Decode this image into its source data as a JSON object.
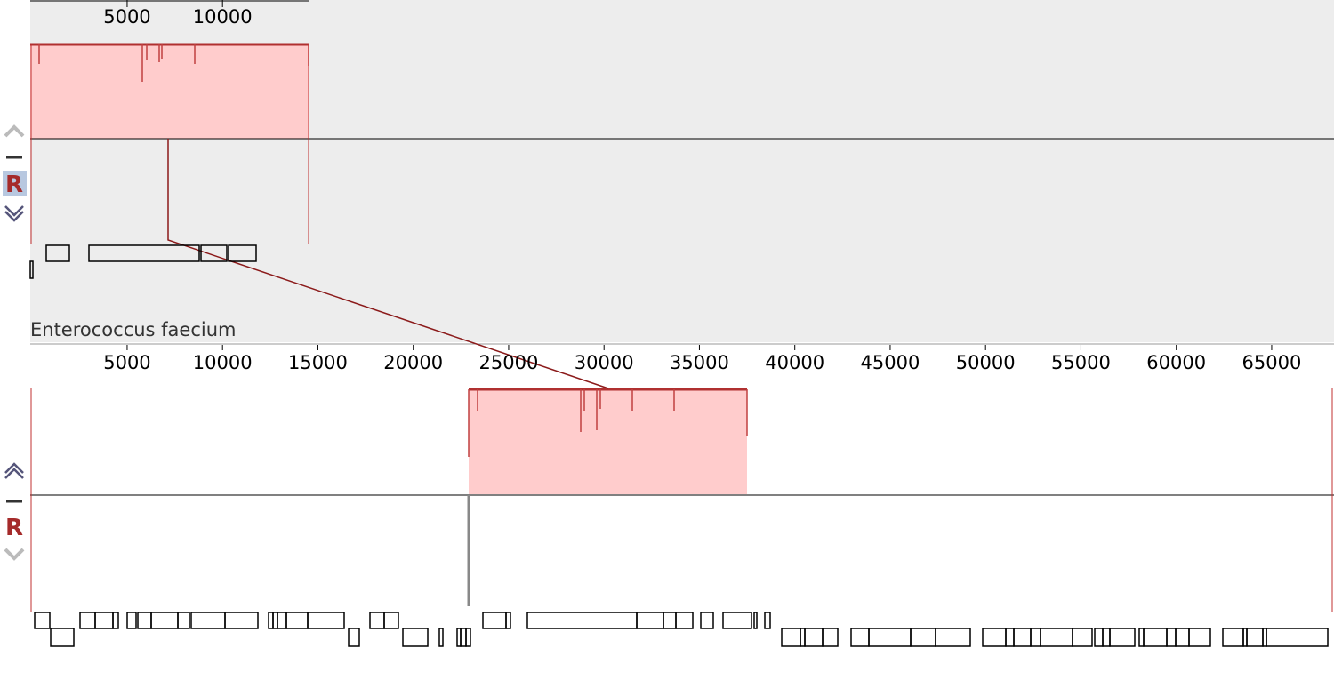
{
  "panels": [
    {
      "ruler_ticks": [
        5000,
        10000
      ],
      "name": "Enterococcus faecium",
      "button": "R"
    },
    {
      "ruler_ticks": [
        5000,
        10000,
        15000,
        20000,
        25000,
        30000,
        35000,
        40000,
        45000,
        50000,
        55000,
        60000,
        65000
      ],
      "button": "R"
    }
  ]
}
